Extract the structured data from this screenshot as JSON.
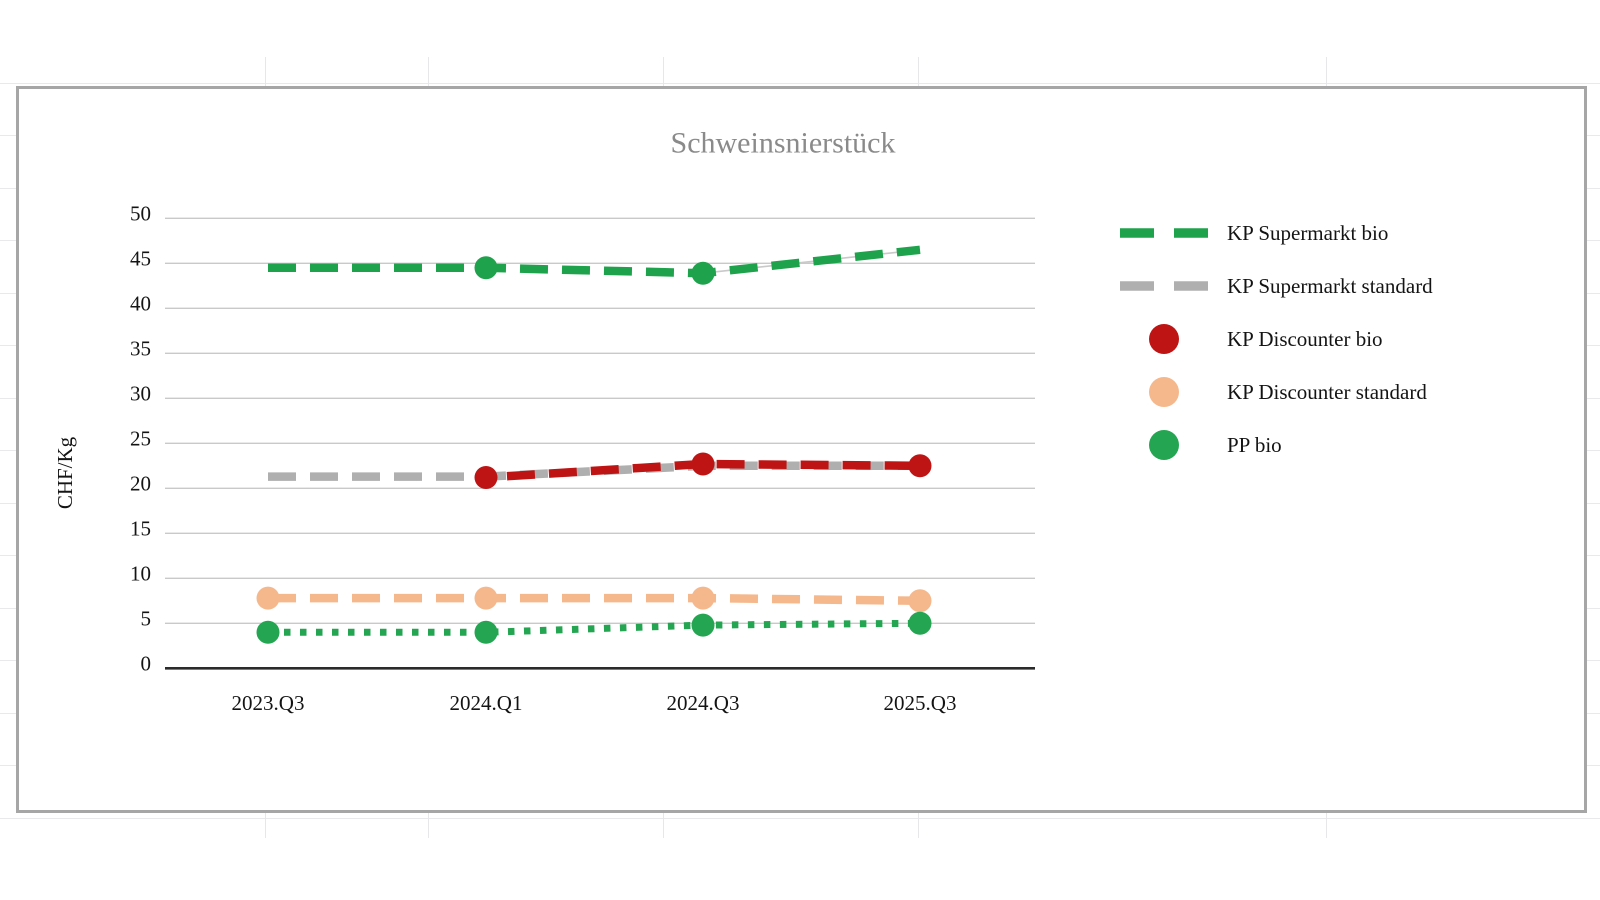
{
  "window": {
    "kind": "spreadsheet canvas with embedded chart"
  },
  "colors": {
    "sheet_grid": "#e9e9ec",
    "frame_border": "#a6a6a6",
    "title_text": "#8a8a8a",
    "axis_text": "#141414",
    "gridline": "#c9c9c9",
    "axis_line": "#2b2b2b",
    "underlay_line": "#c9c9c9"
  },
  "chart_data": {
    "type": "line",
    "title": "Schweinsnierstück",
    "xlabel": "",
    "ylabel": "CHF/Kg",
    "categories": [
      "2023.Q3",
      "2024.Q1",
      "2024.Q3",
      "2025.Q3"
    ],
    "ylim": [
      0,
      50
    ],
    "yticks": [
      0,
      5,
      10,
      15,
      20,
      25,
      30,
      35,
      40,
      45,
      50
    ],
    "grid": true,
    "legend_position": "right",
    "series": [
      {
        "name": "KP Supermarkt bio",
        "values": [
          44.5,
          44.5,
          43.9,
          46.5
        ],
        "color": "#1ea24b",
        "line": "dashed",
        "legend_marker": "dash",
        "point_markers": [
          false,
          true,
          true,
          false
        ],
        "underlay": {
          "from": 2,
          "to": 3,
          "color": "#c9c9c9"
        }
      },
      {
        "name": "KP Supermarkt standard",
        "values": [
          21.3,
          21.3,
          22.5,
          22.5
        ],
        "color": "#afafaf",
        "line": "dashed",
        "legend_marker": "dash",
        "point_markers": [
          false,
          false,
          false,
          false
        ]
      },
      {
        "name": "KP Discounter bio",
        "values": [
          null,
          21.2,
          22.7,
          22.5
        ],
        "color": "#be1414",
        "line": "dashed",
        "legend_marker": "circle",
        "dash_phase": 21,
        "point_markers": [
          false,
          true,
          true,
          true
        ]
      },
      {
        "name": "KP Discounter standard",
        "values": [
          7.8,
          7.8,
          7.8,
          7.5
        ],
        "color": "#f5b88c",
        "line": "dashed",
        "legend_marker": "circle",
        "point_markers": [
          true,
          true,
          true,
          true
        ]
      },
      {
        "name": "PP bio",
        "values": [
          4.0,
          4.0,
          4.8,
          5.0
        ],
        "color": "#24a551",
        "line": "dotted",
        "legend_marker": "circle",
        "point_markers": [
          true,
          true,
          true,
          true
        ]
      }
    ]
  }
}
